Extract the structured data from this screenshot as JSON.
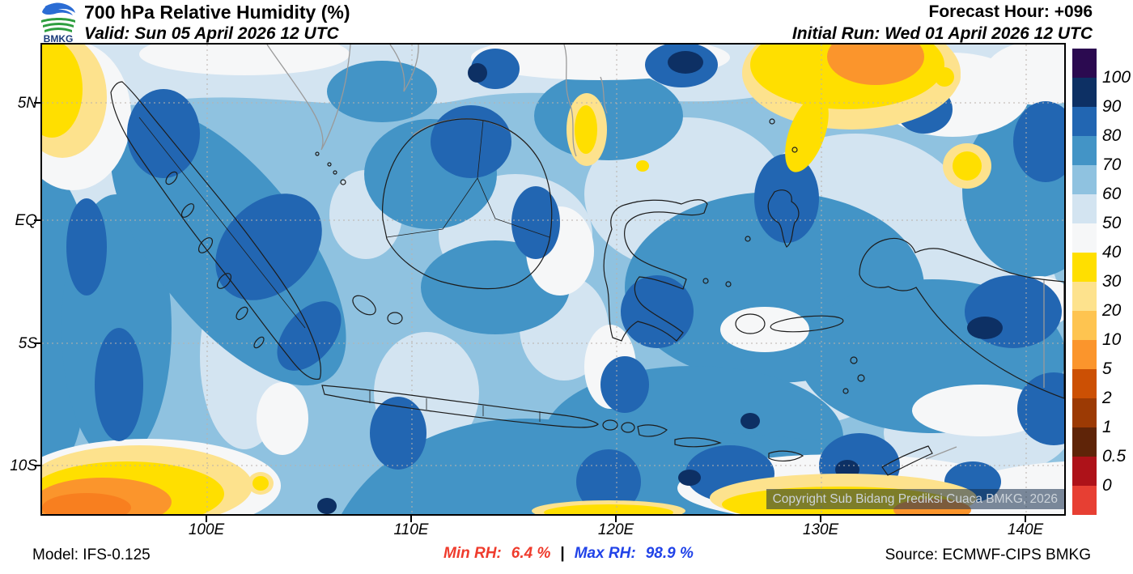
{
  "header": {
    "logo_text": "BMKG",
    "title": "700 hPa Relative Humidity (%)",
    "valid": "Valid: Sun 05 April 2026 12 UTC",
    "forecast_hour": "Forecast Hour: +096",
    "initial_run": "Initial Run: Wed 01 April 2026 12 UTC"
  },
  "map": {
    "copyright": "Copyright Sub Bidang Prediksi Cuaca BMKG, 2026",
    "lat_ticks": [
      "5N",
      "EQ",
      "5S",
      "10S"
    ],
    "lon_ticks": [
      "100E",
      "110E",
      "120E",
      "130E",
      "140E"
    ]
  },
  "legend": {
    "labels": [
      "100",
      "90",
      "80",
      "70",
      "60",
      "50",
      "40",
      "30",
      "20",
      "10",
      "5",
      "2",
      "1",
      "0.5",
      "0"
    ],
    "colors": [
      "#2b0a50",
      "#0d3064",
      "#2266b2",
      "#4394c6",
      "#8fc2e0",
      "#d3e4f1",
      "#f6f7f8",
      "#ffdf00",
      "#fde28d",
      "#fec450",
      "#fb952c",
      "#cc5004",
      "#9c3a04",
      "#5f2408",
      "#ae1219",
      "#e73f33"
    ]
  },
  "footer": {
    "model": "Model: IFS-0.125",
    "min_rh_label": "Min RH:",
    "min_rh_value": "6.4 %",
    "separator": "|",
    "max_rh_label": "Max RH:",
    "max_rh_value": "98.9 %",
    "source": "Source: ECMWF-CIPS BMKG"
  },
  "colors": {
    "min_rh_text": "#ef3b2c",
    "max_rh_text": "#2143e8",
    "field_base": "#8fc2e0"
  }
}
